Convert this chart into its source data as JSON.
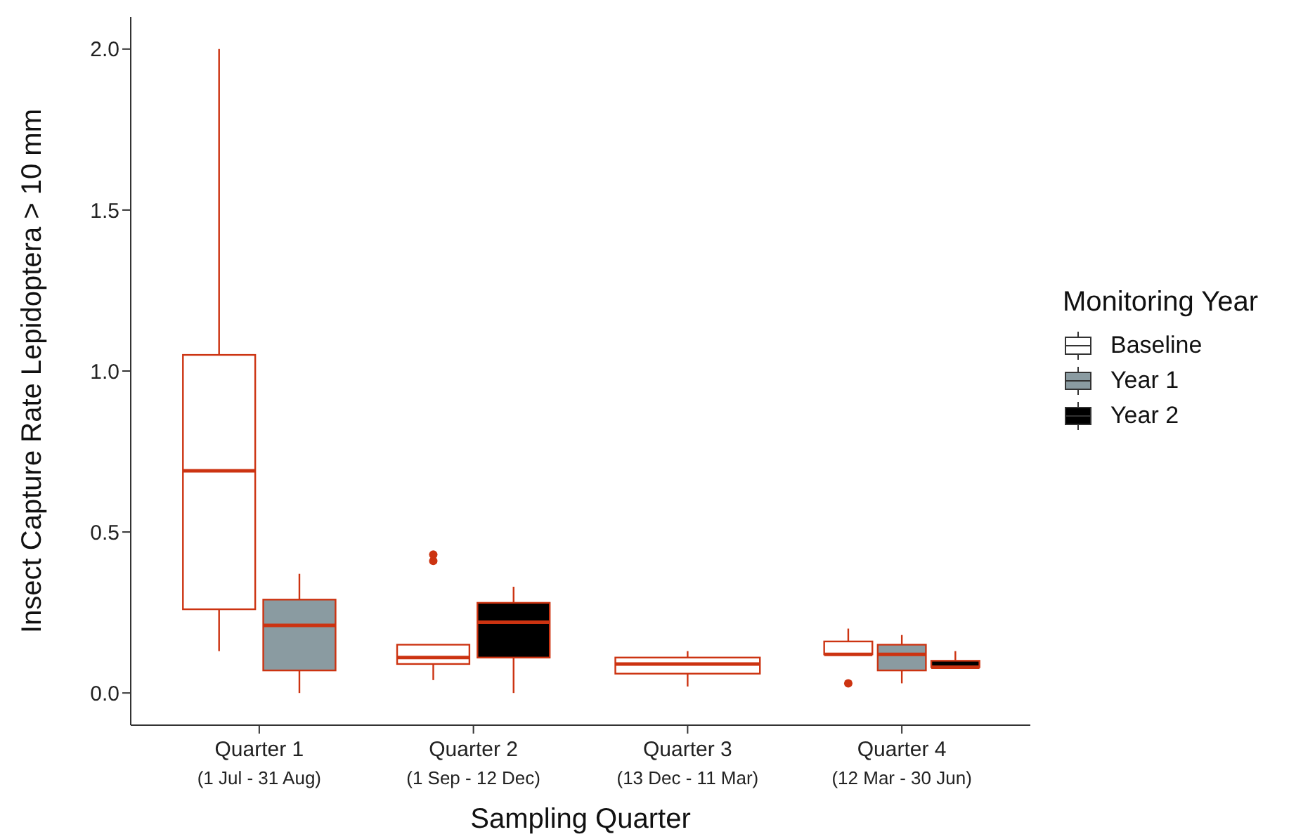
{
  "chart_data": {
    "type": "box",
    "xlabel": "Sampling Quarter",
    "ylabel": "Insect Capture Rate Lepidoptera > 10 mm",
    "legend_title": "Monitoring Year",
    "legend": "right",
    "grid": false,
    "categories": [
      "Quarter 1\n(1 Jul - 31 Aug)",
      "Quarter 2\n(1 Sep - 12 Dec)",
      "Quarter 3\n(13 Dec - 11 Mar)",
      "Quarter 4\n(12 Mar - 30 Jun)"
    ],
    "ylim": [
      -0.1,
      2.1
    ],
    "yticks": [
      {
        "value": 0,
        "label": "0.0"
      },
      {
        "value": 0.5,
        "label": "0.5"
      },
      {
        "value": 1,
        "label": "1.0"
      },
      {
        "value": 1.5,
        "label": "1.5"
      },
      {
        "value": 2,
        "label": "2.0"
      }
    ],
    "series": [
      {
        "name": "Baseline",
        "color": "#ffffff",
        "boxes": [
          {
            "low": 0.13,
            "q1": 0.26,
            "median": 0.69,
            "q3": 1.05,
            "high": 2.0
          },
          {
            "low": 0.04,
            "q1": 0.09,
            "median": 0.11,
            "q3": 0.15,
            "high": 0.15,
            "outliers": [
              0.41,
              0.43
            ]
          },
          {
            "low": 0.02,
            "q1": 0.06,
            "median": 0.09,
            "q3": 0.11,
            "high": 0.13
          },
          {
            "low": 0.12,
            "q1": 0.12,
            "median": 0.12,
            "q3": 0.16,
            "high": 0.2,
            "outliers": [
              0.03
            ]
          }
        ]
      },
      {
        "name": "Year 1",
        "color": "#8a9ba1",
        "boxes": [
          {
            "low": 0.0,
            "q1": 0.07,
            "median": 0.21,
            "q3": 0.29,
            "high": 0.37
          },
          null,
          null,
          {
            "low": 0.03,
            "q1": 0.07,
            "median": 0.12,
            "q3": 0.15,
            "high": 0.18
          }
        ]
      },
      {
        "name": "Year 2",
        "color": "#000000",
        "boxes": [
          null,
          {
            "low": 0.0,
            "q1": 0.11,
            "median": 0.22,
            "q3": 0.28,
            "high": 0.33
          },
          null,
          {
            "low": 0.08,
            "q1": 0.08,
            "median": 0.08,
            "q3": 0.1,
            "high": 0.13
          }
        ]
      }
    ]
  }
}
